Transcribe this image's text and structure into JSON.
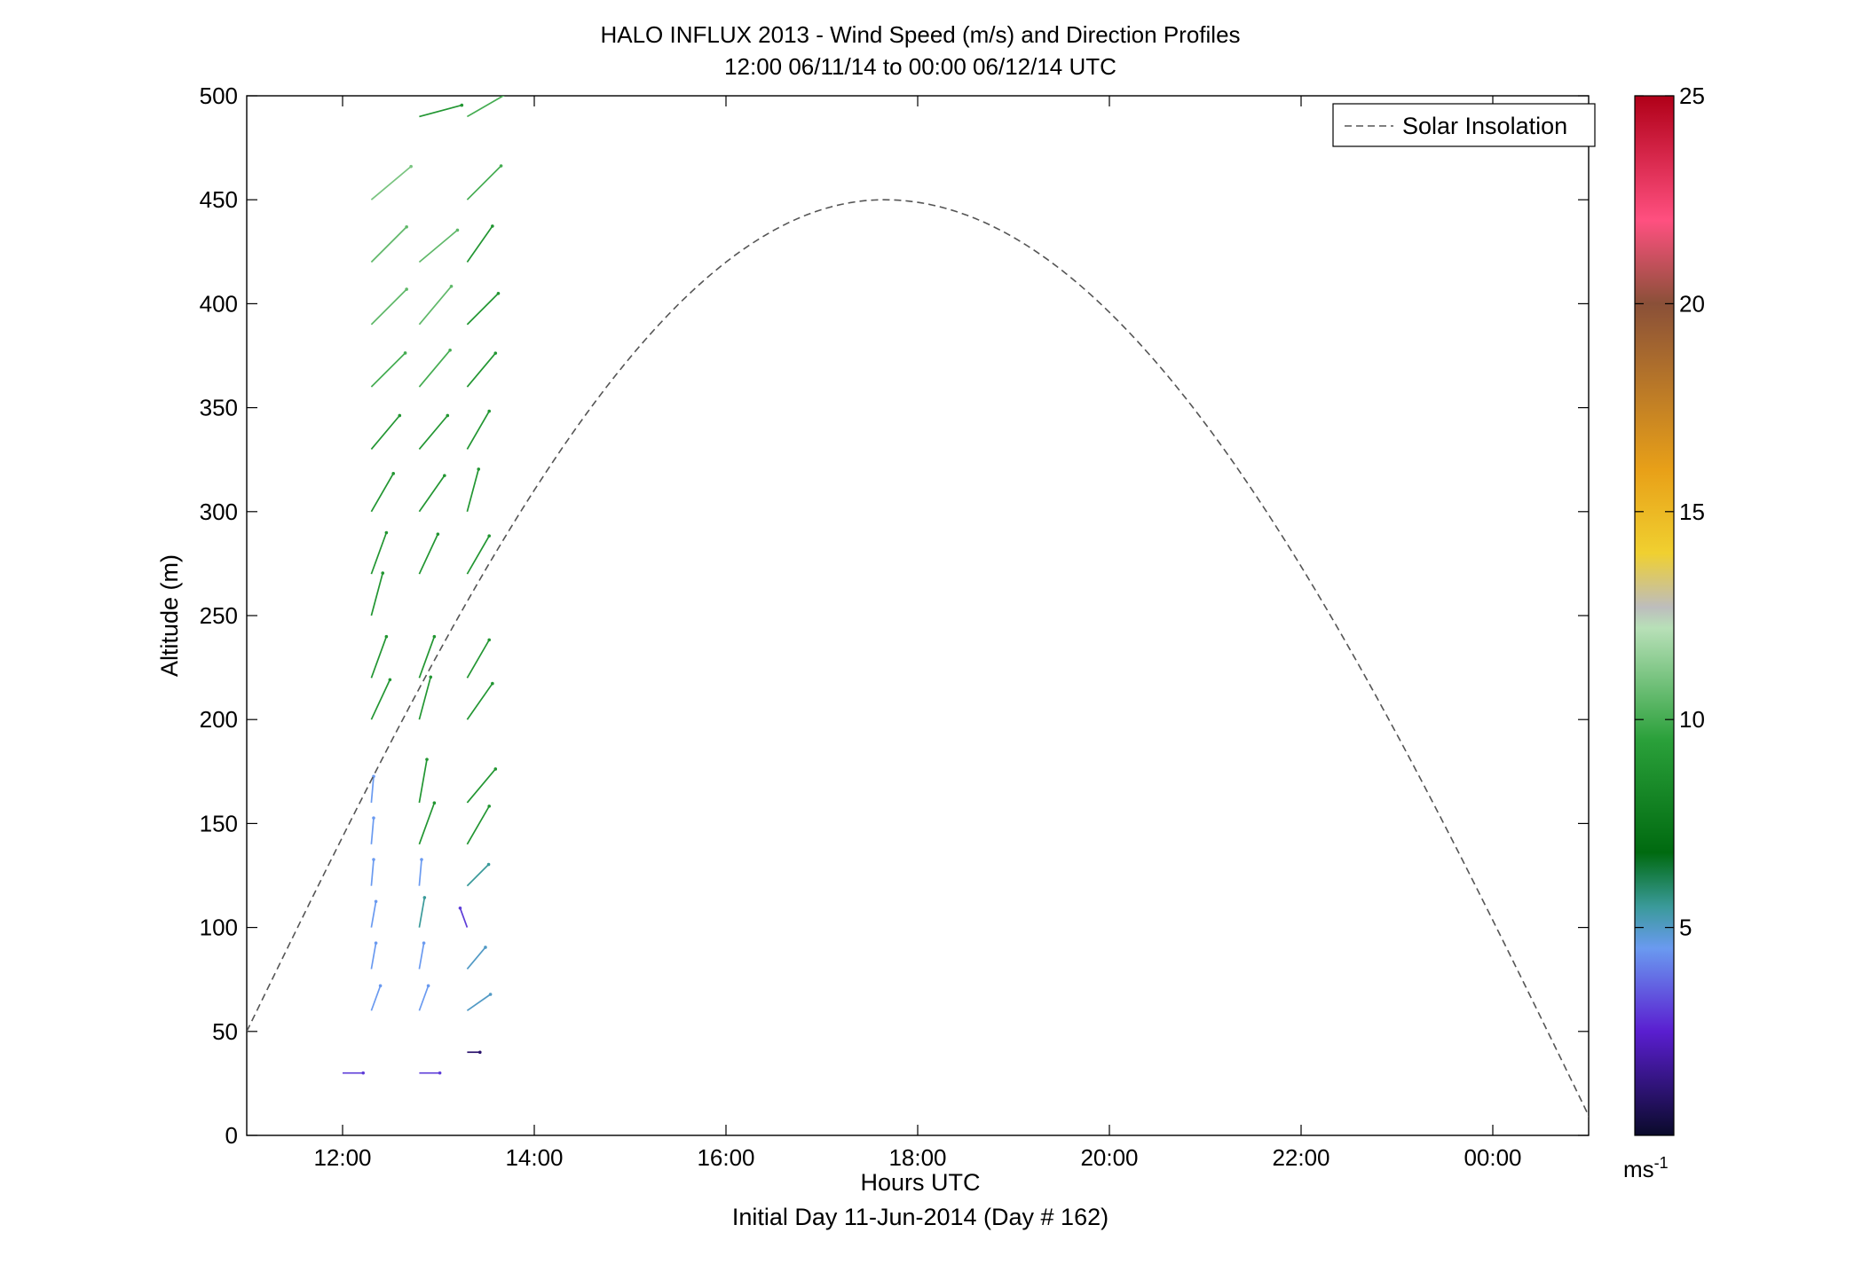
{
  "chart_data": {
    "type": "scatter",
    "subtype": "wind-barb-profile",
    "title": "HALO INFLUX 2013 - Wind Speed (m/s) and Direction Profiles",
    "subtitle": "12:00 06/11/14 to 00:00 06/12/14  UTC",
    "xlabel": "Hours UTC",
    "xlabel2": "Initial Day 11-Jun-2014 (Day # 162)",
    "ylabel": "Altitude (m)",
    "xlim": [
      11,
      25
    ],
    "ylim": [
      0,
      500
    ],
    "xticks": [
      12,
      14,
      16,
      18,
      20,
      22,
      24
    ],
    "xtick_labels": [
      "12:00",
      "14:00",
      "16:00",
      "18:00",
      "20:00",
      "22:00",
      "00:00"
    ],
    "yticks": [
      0,
      50,
      100,
      150,
      200,
      250,
      300,
      350,
      400,
      450,
      500
    ],
    "ytick_labels": [
      "0",
      "50",
      "100",
      "150",
      "200",
      "250",
      "300",
      "350",
      "400",
      "450",
      "500"
    ],
    "colorbar": {
      "range": [
        0,
        25
      ],
      "ticks": [
        5,
        10,
        15,
        20,
        25
      ],
      "tick_labels": [
        "5",
        "10",
        "15",
        "20",
        "25"
      ],
      "unit": "ms",
      "unit_exp": "-1",
      "stops": [
        {
          "v": 0,
          "c": "#0a0a2a"
        },
        {
          "v": 2.5,
          "c": "#5a1ed0"
        },
        {
          "v": 4.5,
          "c": "#6a9af0"
        },
        {
          "v": 5.5,
          "c": "#3a9a9a"
        },
        {
          "v": 6.8,
          "c": "#006a10"
        },
        {
          "v": 9.5,
          "c": "#2aa03a"
        },
        {
          "v": 12.2,
          "c": "#b8e0b8"
        },
        {
          "v": 12.7,
          "c": "#bdbdbd"
        },
        {
          "v": 14,
          "c": "#f0d030"
        },
        {
          "v": 16,
          "c": "#e8a018"
        },
        {
          "v": 20,
          "c": "#8a5038"
        },
        {
          "v": 22,
          "c": "#ff5080"
        },
        {
          "v": 25,
          "c": "#b00018"
        }
      ]
    },
    "legend": {
      "entries": [
        "Solar Insolation"
      ],
      "position": "top-right"
    },
    "solar_insolation": {
      "start_hour": 11,
      "peak_hour": 17.65,
      "end_hour": 25.1,
      "peak_altitude": 450,
      "start_altitude": 50
    },
    "wind_vectors": [
      {
        "t": 12.0,
        "alt": 30,
        "speed": 3,
        "dir": 90
      },
      {
        "t": 12.3,
        "alt": 60,
        "speed": 4.5,
        "dir": 20
      },
      {
        "t": 12.3,
        "alt": 80,
        "speed": 4.5,
        "dir": 10
      },
      {
        "t": 12.3,
        "alt": 100,
        "speed": 4.5,
        "dir": 10
      },
      {
        "t": 12.3,
        "alt": 120,
        "speed": 4.5,
        "dir": 5
      },
      {
        "t": 12.3,
        "alt": 140,
        "speed": 4.5,
        "dir": 5
      },
      {
        "t": 12.3,
        "alt": 160,
        "speed": 4.5,
        "dir": 5
      },
      {
        "t": 12.3,
        "alt": 200,
        "speed": 9,
        "dir": 25
      },
      {
        "t": 12.3,
        "alt": 220,
        "speed": 9,
        "dir": 20
      },
      {
        "t": 12.3,
        "alt": 250,
        "speed": 9,
        "dir": 15
      },
      {
        "t": 12.3,
        "alt": 270,
        "speed": 9,
        "dir": 20
      },
      {
        "t": 12.3,
        "alt": 300,
        "speed": 9,
        "dir": 30
      },
      {
        "t": 12.3,
        "alt": 330,
        "speed": 9,
        "dir": 40
      },
      {
        "t": 12.3,
        "alt": 360,
        "speed": 10,
        "dir": 45
      },
      {
        "t": 12.3,
        "alt": 390,
        "speed": 10.5,
        "dir": 45
      },
      {
        "t": 12.3,
        "alt": 420,
        "speed": 10.5,
        "dir": 45
      },
      {
        "t": 12.3,
        "alt": 450,
        "speed": 11,
        "dir": 50
      },
      {
        "t": 12.8,
        "alt": 30,
        "speed": 3,
        "dir": 90
      },
      {
        "t": 12.8,
        "alt": 60,
        "speed": 4.5,
        "dir": 20
      },
      {
        "t": 12.8,
        "alt": 80,
        "speed": 4.5,
        "dir": 10
      },
      {
        "t": 12.8,
        "alt": 100,
        "speed": 5.5,
        "dir": 10
      },
      {
        "t": 12.8,
        "alt": 120,
        "speed": 4.5,
        "dir": 5
      },
      {
        "t": 12.8,
        "alt": 140,
        "speed": 9,
        "dir": 20
      },
      {
        "t": 12.8,
        "alt": 160,
        "speed": 9,
        "dir": 10
      },
      {
        "t": 12.8,
        "alt": 200,
        "speed": 9,
        "dir": 15
      },
      {
        "t": 12.8,
        "alt": 220,
        "speed": 9,
        "dir": 20
      },
      {
        "t": 12.8,
        "alt": 270,
        "speed": 9,
        "dir": 25
      },
      {
        "t": 12.8,
        "alt": 300,
        "speed": 9,
        "dir": 35
      },
      {
        "t": 12.8,
        "alt": 330,
        "speed": 9,
        "dir": 40
      },
      {
        "t": 12.8,
        "alt": 360,
        "speed": 10,
        "dir": 40
      },
      {
        "t": 12.8,
        "alt": 390,
        "speed": 10.5,
        "dir": 40
      },
      {
        "t": 12.8,
        "alt": 420,
        "speed": 10.5,
        "dir": 50
      },
      {
        "t": 12.8,
        "alt": 490,
        "speed": 9,
        "dir": 75
      },
      {
        "t": 13.3,
        "alt": 40,
        "speed": 1,
        "dir": 90
      },
      {
        "t": 13.3,
        "alt": 60,
        "speed": 5,
        "dir": 55
      },
      {
        "t": 13.3,
        "alt": 80,
        "speed": 5,
        "dir": 40
      },
      {
        "t": 13.3,
        "alt": 100,
        "speed": 3,
        "dir": 340
      },
      {
        "t": 13.3,
        "alt": 120,
        "speed": 5.5,
        "dir": 45
      },
      {
        "t": 13.3,
        "alt": 140,
        "speed": 9,
        "dir": 30
      },
      {
        "t": 13.3,
        "alt": 160,
        "speed": 9,
        "dir": 40
      },
      {
        "t": 13.3,
        "alt": 200,
        "speed": 9,
        "dir": 35
      },
      {
        "t": 13.3,
        "alt": 220,
        "speed": 9,
        "dir": 30
      },
      {
        "t": 13.3,
        "alt": 270,
        "speed": 9,
        "dir": 30
      },
      {
        "t": 13.3,
        "alt": 300,
        "speed": 9,
        "dir": 15
      },
      {
        "t": 13.3,
        "alt": 330,
        "speed": 9,
        "dir": 30
      },
      {
        "t": 13.3,
        "alt": 360,
        "speed": 9,
        "dir": 40
      },
      {
        "t": 13.3,
        "alt": 390,
        "speed": 9,
        "dir": 45
      },
      {
        "t": 13.3,
        "alt": 420,
        "speed": 9,
        "dir": 35
      },
      {
        "t": 13.3,
        "alt": 450,
        "speed": 10,
        "dir": 45
      },
      {
        "t": 13.3,
        "alt": 490,
        "speed": 10,
        "dir": 60
      }
    ]
  }
}
